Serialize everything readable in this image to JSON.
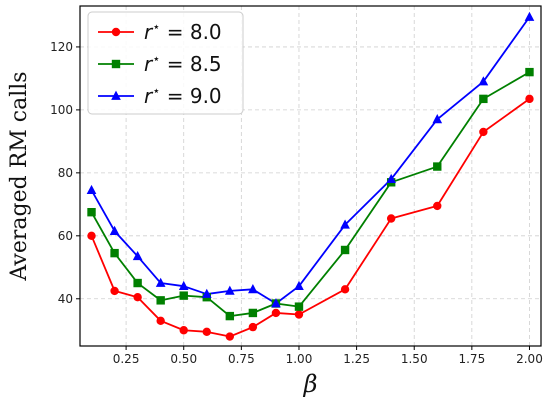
{
  "chart_data": {
    "type": "line",
    "xlabel": "β",
    "ylabel": "Averaged RM calls",
    "xlim": [
      0.05,
      2.05
    ],
    "ylim": [
      25,
      133
    ],
    "xticks": [
      "0.25",
      "0.50",
      "0.75",
      "1.00",
      "1.25",
      "1.50",
      "1.75",
      "2.00"
    ],
    "yticks": [
      "40",
      "60",
      "80",
      "100",
      "120"
    ],
    "grid": true,
    "legend_position": "top-left",
    "x": [
      0.1,
      0.2,
      0.3,
      0.4,
      0.5,
      0.6,
      0.7,
      0.8,
      0.9,
      1.0,
      1.2,
      1.4,
      1.6,
      1.8,
      2.0
    ],
    "series": [
      {
        "name": "r* = 8.0",
        "label_var": "r",
        "label_sup": "⋆",
        "label_rest": " = 8.0",
        "color": "#ff0000",
        "marker": "circle",
        "values": [
          60,
          42.5,
          40.5,
          33,
          30,
          29.5,
          28,
          31,
          35.5,
          35,
          43,
          65.5,
          69.5,
          93,
          103.5
        ]
      },
      {
        "name": "r* = 8.5",
        "label_var": "r",
        "label_sup": "⋆",
        "label_rest": " = 8.5",
        "color": "#008000",
        "marker": "square",
        "values": [
          67.5,
          54.5,
          45,
          39.5,
          41,
          40.5,
          34.5,
          35.5,
          38.5,
          37.5,
          55.5,
          77,
          82,
          103.5,
          112
        ]
      },
      {
        "name": "r* = 9.0",
        "label_var": "r",
        "label_sup": "⋆",
        "label_rest": " = 9.0",
        "color": "#0000ff",
        "marker": "triangle",
        "values": [
          74.5,
          61.5,
          53.5,
          45,
          44,
          41.5,
          42.5,
          43,
          38.5,
          44,
          63.5,
          78,
          97,
          109,
          129.5
        ]
      }
    ]
  }
}
